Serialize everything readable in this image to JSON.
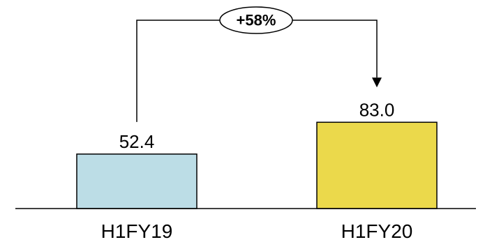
{
  "chart_data": {
    "type": "bar",
    "categories": [
      "H1FY19",
      "H1FY20"
    ],
    "values": [
      52.4,
      83.0
    ],
    "value_labels": [
      "52.4",
      "83.0"
    ],
    "bar_colors": [
      "#bcdde6",
      "#ebd94b"
    ],
    "ylim": [
      0,
      100
    ],
    "grid": false,
    "legend": "none",
    "annotation": {
      "text": "+58%",
      "from": "H1FY19",
      "to": "H1FY20"
    }
  }
}
